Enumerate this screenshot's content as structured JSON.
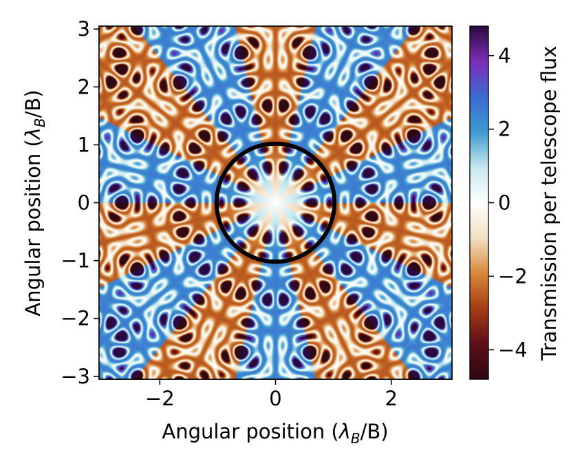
{
  "chart_data": {
    "type": "heatmap",
    "title": "",
    "xlabel": {
      "prefix": "Angular position (",
      "lambda": "λ",
      "sub": "B",
      "suffix": "/B)"
    },
    "ylabel": {
      "prefix": "Angular position (",
      "lambda": "λ",
      "sub": "B",
      "suffix": "/B)"
    },
    "xlim": [
      -3.05,
      3.05
    ],
    "ylim": [
      -3.05,
      3.05
    ],
    "xticks": [
      -2,
      0,
      2
    ],
    "xtick_labels": [
      "−2",
      "0",
      "2"
    ],
    "yticks": [
      -3,
      -2,
      -1,
      0,
      1,
      2,
      3
    ],
    "ytick_labels": [
      "−3",
      "−2",
      "−1",
      "0",
      "1",
      "2",
      "3"
    ],
    "grid": false,
    "colormap": "diverging: dark red / orange / white / light blue / blue / purple",
    "color_stops": [
      "#2e0812",
      "#5e0f1a",
      "#a53d12",
      "#d9883b",
      "#f1e0c6",
      "#ffffff",
      "#c8e8ef",
      "#3f9bd0",
      "#3d6ad2",
      "#7b2fb8",
      "#2a0a3e"
    ],
    "pattern": {
      "description": "Transmission map of a 7-telescope nulling interferometer; 7-fold symmetric fringe pattern with sign alternating over 14 sectors",
      "symmetry_order": 7,
      "spatial_frequency_per_lambdaB": 4.4,
      "amplitude_range": [
        -4.8,
        4.8
      ]
    },
    "annotations": [
      {
        "type": "circle",
        "center": [
          0,
          0
        ],
        "radius": 1.02,
        "color": "#000000"
      }
    ],
    "colorbar": {
      "label": "Transmission per telescope flux",
      "range": [
        -4.8,
        4.8
      ],
      "ticks": [
        -4,
        -2,
        0,
        2,
        4
      ],
      "tick_labels": [
        "−4",
        "−2",
        "0",
        "2",
        "4"
      ]
    }
  }
}
